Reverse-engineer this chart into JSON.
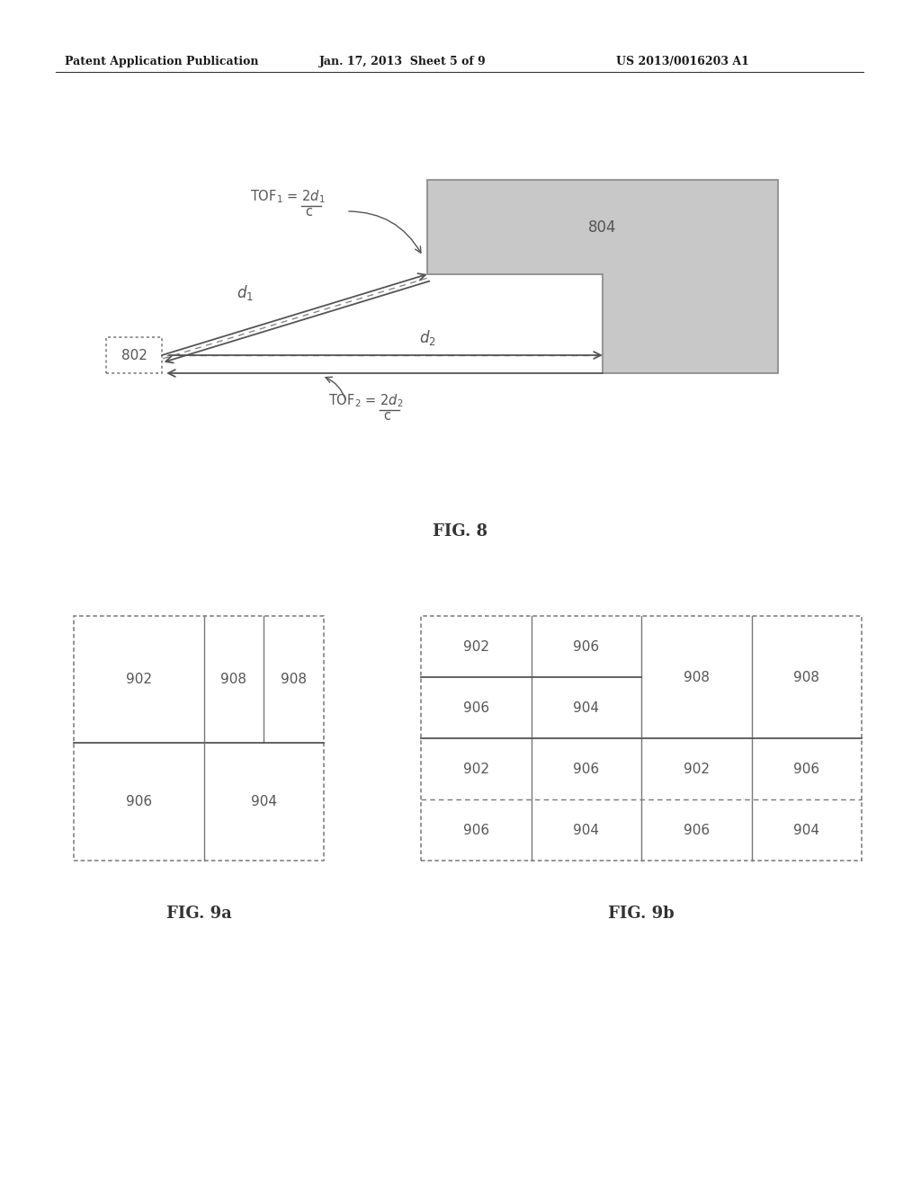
{
  "header_left": "Patent Application Publication",
  "header_mid": "Jan. 17, 2013  Sheet 5 of 9",
  "header_right": "US 2013/0016203 A1",
  "fig8_label": "FIG. 8",
  "fig9a_label": "FIG. 9a",
  "fig9b_label": "FIG. 9b",
  "bg_color": "#ffffff",
  "text_color": "#1a1a1a",
  "gray_fill": "#c8c8c8",
  "border_color": "#555555",
  "box_802_label": "802",
  "box_804_label": "804"
}
